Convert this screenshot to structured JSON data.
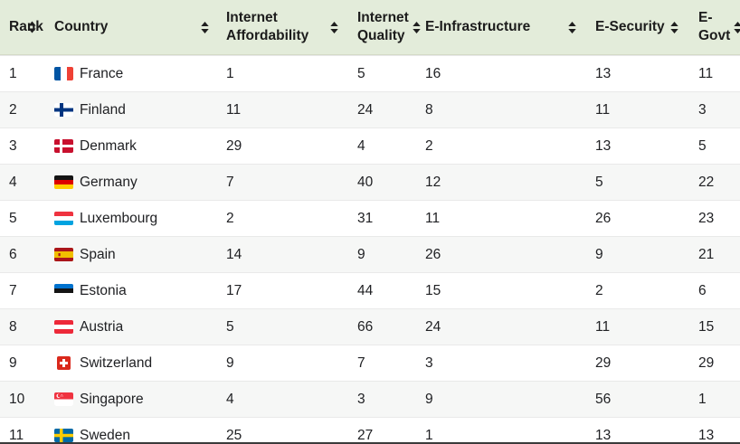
{
  "table": {
    "columns": [
      {
        "key": "rank",
        "label": "Rank",
        "sortable": true,
        "icon": "sort-arrows-icon"
      },
      {
        "key": "country",
        "label": "Country",
        "sortable": true,
        "icon": "sort-arrows-icon"
      },
      {
        "key": "internet_affordability",
        "label": "Internet Affordability",
        "sortable": true,
        "icon": "sort-arrows-icon"
      },
      {
        "key": "internet_quality",
        "label": "Internet Quality",
        "sortable": true,
        "icon": "sort-arrows-icon"
      },
      {
        "key": "e_infrastructure",
        "label": "E-Infrastructure",
        "sortable": true,
        "icon": "sort-arrows-icon"
      },
      {
        "key": "e_security",
        "label": "E-Security",
        "sortable": true,
        "icon": "sort-arrows-icon"
      },
      {
        "key": "e_govt",
        "label": "E-Govt",
        "sortable": true,
        "icon": "sort-arrows-icon"
      }
    ],
    "rows": [
      {
        "rank": 1,
        "country": "France",
        "flag": "france-flag",
        "internet_affordability": 1,
        "internet_quality": 5,
        "e_infrastructure": 16,
        "e_security": 13,
        "e_govt": 11
      },
      {
        "rank": 2,
        "country": "Finland",
        "flag": "finland-flag",
        "internet_affordability": 11,
        "internet_quality": 24,
        "e_infrastructure": 8,
        "e_security": 11,
        "e_govt": 3
      },
      {
        "rank": 3,
        "country": "Denmark",
        "flag": "denmark-flag",
        "internet_affordability": 29,
        "internet_quality": 4,
        "e_infrastructure": 2,
        "e_security": 13,
        "e_govt": 5
      },
      {
        "rank": 4,
        "country": "Germany",
        "flag": "germany-flag",
        "internet_affordability": 7,
        "internet_quality": 40,
        "e_infrastructure": 12,
        "e_security": 5,
        "e_govt": 22
      },
      {
        "rank": 5,
        "country": "Luxembourg",
        "flag": "luxembourg-flag",
        "internet_affordability": 2,
        "internet_quality": 31,
        "e_infrastructure": 11,
        "e_security": 26,
        "e_govt": 23
      },
      {
        "rank": 6,
        "country": "Spain",
        "flag": "spain-flag",
        "internet_affordability": 14,
        "internet_quality": 9,
        "e_infrastructure": 26,
        "e_security": 9,
        "e_govt": 21
      },
      {
        "rank": 7,
        "country": "Estonia",
        "flag": "estonia-flag",
        "internet_affordability": 17,
        "internet_quality": 44,
        "e_infrastructure": 15,
        "e_security": 2,
        "e_govt": 6
      },
      {
        "rank": 8,
        "country": "Austria",
        "flag": "austria-flag",
        "internet_affordability": 5,
        "internet_quality": 66,
        "e_infrastructure": 24,
        "e_security": 11,
        "e_govt": 15
      },
      {
        "rank": 9,
        "country": "Switzerland",
        "flag": "switzerland-flag",
        "internet_affordability": 9,
        "internet_quality": 7,
        "e_infrastructure": 3,
        "e_security": 29,
        "e_govt": 29
      },
      {
        "rank": 10,
        "country": "Singapore",
        "flag": "singapore-flag",
        "internet_affordability": 4,
        "internet_quality": 3,
        "e_infrastructure": 9,
        "e_security": 56,
        "e_govt": 1
      },
      {
        "rank": 11,
        "country": "Sweden",
        "flag": "sweden-flag",
        "internet_affordability": 25,
        "internet_quality": 27,
        "e_infrastructure": 1,
        "e_security": 13,
        "e_govt": 13
      }
    ]
  },
  "colors": {
    "header_bg": "#e3ecda",
    "header_border": "#d3d9c6",
    "alt_row_bg": "#f6f7f6",
    "row_bg": "#ffffff",
    "bottom_border": "#3b3b3b",
    "text": "#202124"
  }
}
